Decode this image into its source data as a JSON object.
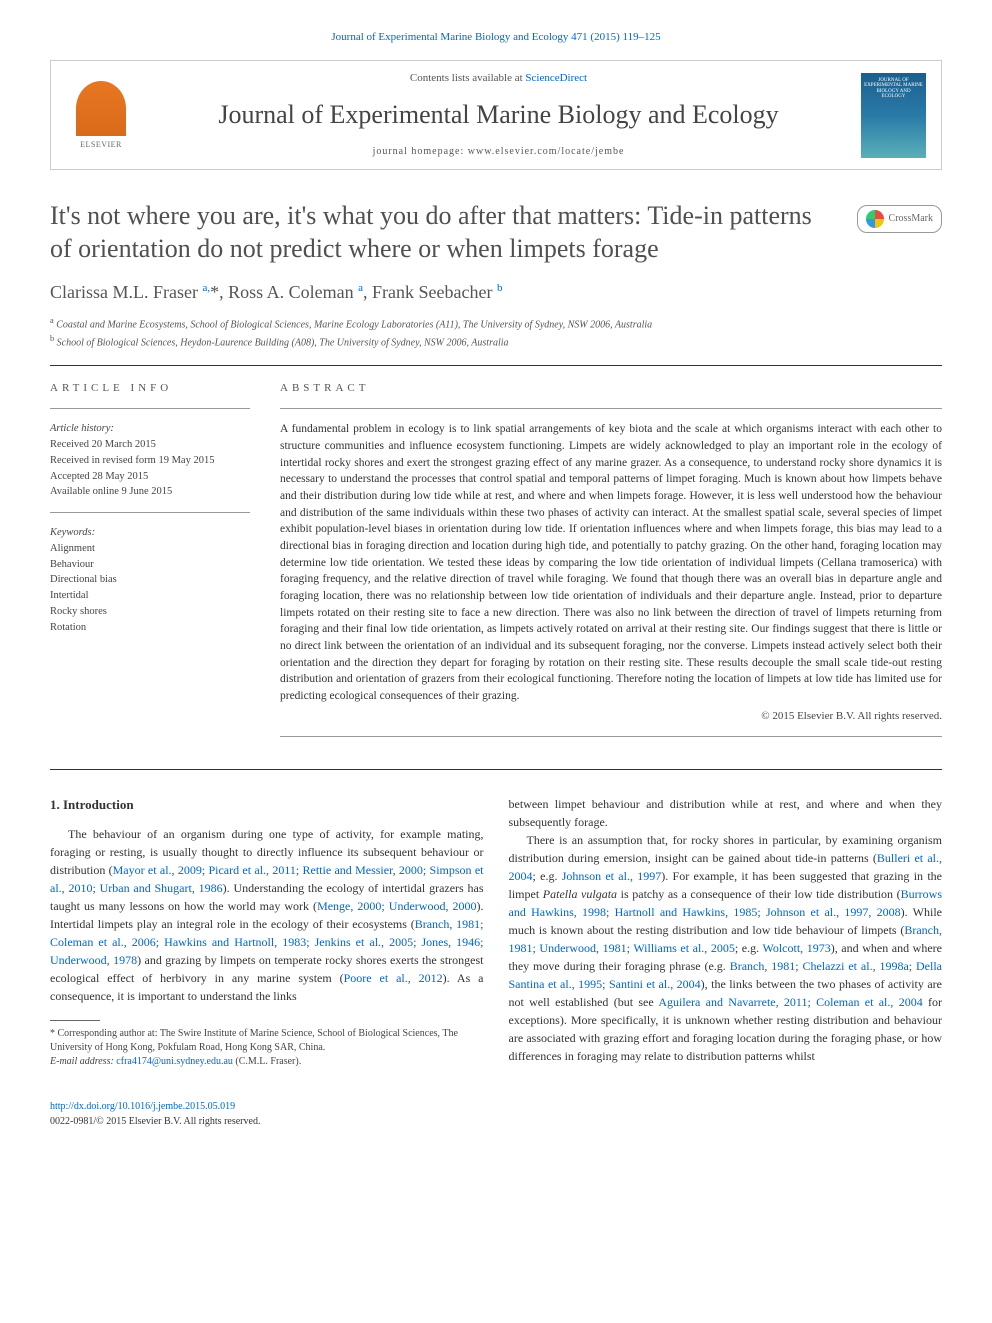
{
  "top_link": "Journal of Experimental Marine Biology and Ecology 471 (2015) 119–125",
  "header": {
    "contents_prefix": "Contents lists available at ",
    "contents_link": "ScienceDirect",
    "journal_name": "Journal of Experimental Marine Biology and Ecology",
    "homepage_prefix": "journal homepage: ",
    "homepage_url": "www.elsevier.com/locate/jembe",
    "publisher": "ELSEVIER",
    "cover_text": "JOURNAL OF EXPERIMENTAL MARINE BIOLOGY AND ECOLOGY"
  },
  "crossmark_label": "CrossMark",
  "title": "It's not where you are, it's what you do after that matters: Tide-in patterns of orientation do not predict where or when limpets forage",
  "authors_html": "Clarissa M.L. Fraser <sup>a,</sup>*, Ross A. Coleman <sup>a</sup>, Frank Seebacher <sup>b</sup>",
  "affiliations": {
    "a": "Coastal and Marine Ecosystems, School of Biological Sciences, Marine Ecology Laboratories (A11), The University of Sydney, NSW 2006, Australia",
    "b": "School of Biological Sciences, Heydon-Laurence Building (A08), The University of Sydney, NSW 2006, Australia"
  },
  "article_info": {
    "label": "ARTICLE INFO",
    "history_label": "Article history:",
    "history": [
      "Received 20 March 2015",
      "Received in revised form 19 May 2015",
      "Accepted 28 May 2015",
      "Available online 9 June 2015"
    ],
    "keywords_label": "Keywords:",
    "keywords": [
      "Alignment",
      "Behaviour",
      "Directional bias",
      "Intertidal",
      "Rocky shores",
      "Rotation"
    ]
  },
  "abstract": {
    "label": "ABSTRACT",
    "text": "A fundamental problem in ecology is to link spatial arrangements of key biota and the scale at which organisms interact with each other to structure communities and influence ecosystem functioning. Limpets are widely acknowledged to play an important role in the ecology of intertidal rocky shores and exert the strongest grazing effect of any marine grazer. As a consequence, to understand rocky shore dynamics it is necessary to understand the processes that control spatial and temporal patterns of limpet foraging. Much is known about how limpets behave and their distribution during low tide while at rest, and where and when limpets forage. However, it is less well understood how the behaviour and distribution of the same individuals within these two phases of activity can interact. At the smallest spatial scale, several species of limpet exhibit population-level biases in orientation during low tide. If orientation influences where and when limpets forage, this bias may lead to a directional bias in foraging direction and location during high tide, and potentially to patchy grazing. On the other hand, foraging location may determine low tide orientation. We tested these ideas by comparing the low tide orientation of individual limpets (Cellana tramoserica) with foraging frequency, and the relative direction of travel while foraging. We found that though there was an overall bias in departure angle and foraging location, there was no relationship between low tide orientation of individuals and their departure angle. Instead, prior to departure limpets rotated on their resting site to face a new direction. There was also no link between the direction of travel of limpets returning from foraging and their final low tide orientation, as limpets actively rotated on arrival at their resting site. Our findings suggest that there is little or no direct link between the orientation of an individual and its subsequent foraging, nor the converse. Limpets instead actively select both their orientation and the direction they depart for foraging by rotation on their resting site. These results decouple the small scale tide-out resting distribution and orientation of grazers from their ecological functioning. Therefore noting the location of limpets at low tide has limited use for predicting ecological consequences of their grazing.",
    "copyright": "© 2015 Elsevier B.V. All rights reserved."
  },
  "intro": {
    "heading": "1. Introduction",
    "p1_a": "The behaviour of an organism during one type of activity, for example mating, foraging or resting, is usually thought to directly influence its subsequent behaviour or distribution (",
    "p1_ref1": "Mayor et al., 2009; Picard et al., 2011; Rettie and Messier, 2000; Simpson et al., 2010; Urban and Shugart, 1986",
    "p1_b": "). Understanding the ecology of intertidal grazers has taught us many lessons on how the world may work (",
    "p1_ref2": "Menge, 2000; Underwood, 2000",
    "p1_c": "). Intertidal limpets play an integral role in the ecology of their ecosystems (",
    "p1_ref3": "Branch, 1981; Coleman et al., 2006; Hawkins and Hartnoll, 1983; Jenkins et al., 2005; Jones, 1946; Underwood, 1978",
    "p1_d": ") and grazing by limpets on temperate rocky shores exerts the strongest ecological effect of herbivory in any marine system (",
    "p1_ref4": "Poore et al., 2012",
    "p1_e": "). As a consequence, it is important to understand the links",
    "p2": "between limpet behaviour and distribution while at rest, and where and when they subsequently forage.",
    "p3_a": "There is an assumption that, for rocky shores in particular, by examining organism distribution during emersion, insight can be gained about tide-in patterns (",
    "p3_ref1": "Bulleri et al., 2004",
    "p3_b": "; e.g. ",
    "p3_ref2": "Johnson et al., 1997",
    "p3_c": "). For example, it has been suggested that grazing in the limpet ",
    "p3_species": "Patella vulgata",
    "p3_d": " is patchy as a consequence of their low tide distribution (",
    "p3_ref3": "Burrows and Hawkins, 1998; Hartnoll and Hawkins, 1985; Johnson et al., 1997, 2008",
    "p3_e": "). While much is known about the resting distribution and low tide behaviour of limpets (",
    "p3_ref4": "Branch, 1981; Underwood, 1981; Williams et al., 2005",
    "p3_f": "; e.g. ",
    "p3_ref5": "Wolcott, 1973",
    "p3_g": "), and when and where they move during their foraging phrase (e.g. ",
    "p3_ref6": "Branch, 1981; Chelazzi et al., 1998a; Della Santina et al., 1995; Santini et al., 2004",
    "p3_h": "), the links between the two phases of activity are not well established (but see ",
    "p3_ref7": "Aguilera and Navarrete, 2011; Coleman et al., 2004",
    "p3_i": " for exceptions). More specifically, it is unknown whether resting distribution and behaviour are associated with grazing effort and foraging location during the foraging phase, or how differences in foraging may relate to distribution patterns whilst"
  },
  "footnote": {
    "corresp_label": "* Corresponding author at: ",
    "corresp_text": "The Swire Institute of Marine Science, School of Biological Sciences, The University of Hong Kong, Pokfulam Road, Hong Kong SAR, China.",
    "email_label": "E-mail address: ",
    "email": "cfra4174@uni.sydney.edu.au",
    "email_suffix": " (C.M.L. Fraser)."
  },
  "footer": {
    "doi": "http://dx.doi.org/10.1016/j.jembe.2015.05.019",
    "issn_line": "0022-0981/© 2015 Elsevier B.V. All rights reserved."
  },
  "colors": {
    "link": "#0066cc",
    "text": "#333333",
    "border": "#cccccc",
    "elsevier": "#e87722"
  }
}
